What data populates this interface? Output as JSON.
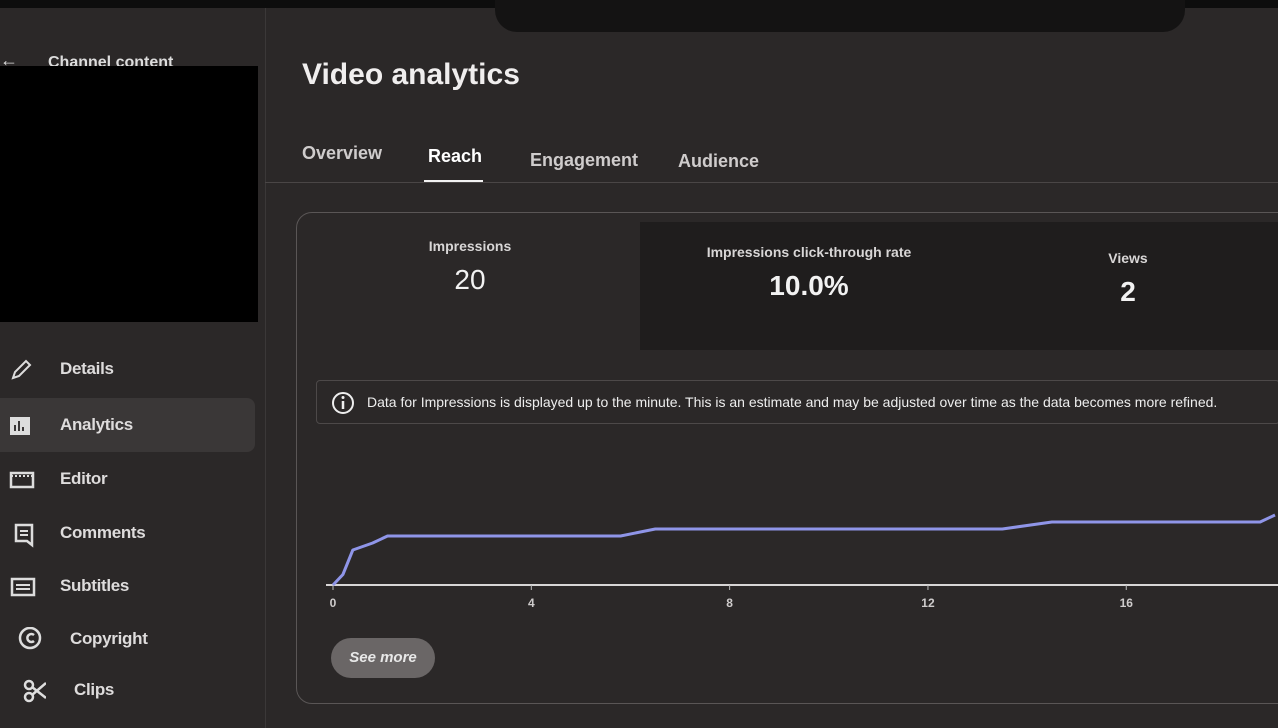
{
  "sidebar": {
    "back_label": "Channel content",
    "nav": [
      "Details",
      "Analytics",
      "Editor",
      "Comments",
      "Subtitles",
      "Copyright",
      "Clips"
    ]
  },
  "header": {
    "title": "Video analytics"
  },
  "tabs": [
    "Overview",
    "Reach",
    "Engagement",
    "Audience"
  ],
  "metrics": [
    {
      "label": "Impressions",
      "value": "20"
    },
    {
      "label": "Impressions click-through rate",
      "value": "10.0%"
    },
    {
      "label": "Views",
      "value": "2"
    }
  ],
  "info": "Data for Impressions is displayed up to the minute. This is an estimate and may be adjusted over time as the data becomes more refined.",
  "button": "See more",
  "chart_data": {
    "type": "line",
    "x": [
      0,
      0.2,
      0.4,
      0.8,
      1.1,
      5.8,
      6.5,
      13.5,
      14.5,
      18.7,
      19
    ],
    "values": [
      0,
      3,
      10,
      12,
      14,
      14,
      16,
      16,
      18,
      18,
      20
    ],
    "color": "#8f95e8",
    "xlim": [
      0,
      19
    ],
    "xticks": [
      0,
      4,
      8,
      12,
      16
    ],
    "ylim": [
      0,
      25
    ]
  }
}
